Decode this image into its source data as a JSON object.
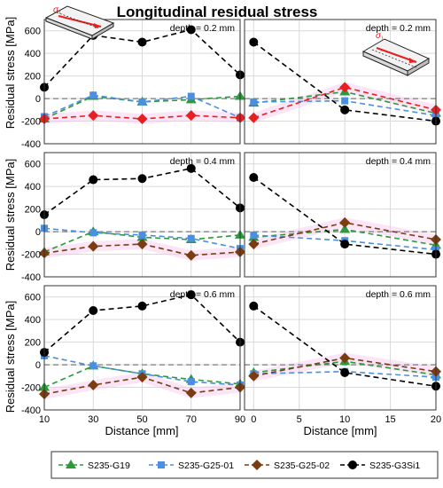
{
  "figure": {
    "title": "Longitudinal residual stress",
    "ylabel": "Residual stress [MPa]",
    "xlabel": "Distance [mm]",
    "sigma_label": "σ",
    "sigma_sub": "L"
  },
  "legend": [
    {
      "name": "S235-G19",
      "color": "#2a9a3a",
      "marker": "triangle"
    },
    {
      "name": "S235-G25-01",
      "color": "#4a8fe0",
      "marker": "square"
    },
    {
      "name": "S235-G25-02",
      "color": "#7a3d12",
      "marker": "diamond"
    },
    {
      "name": "S235-G3Si1",
      "color": "#000000",
      "marker": "circle"
    }
  ],
  "colors": {
    "G19": "#2a9a3a",
    "G25_01": "#4a8fe0",
    "G25_02": "#7a3d12",
    "G25_02_top": "#e62020",
    "G3Si1": "#000000",
    "band": "#f7c6ee"
  },
  "chart_data": [
    {
      "type": "line",
      "panel": "left-top",
      "annotation": "depth = 0.2 mm",
      "x": [
        10,
        30,
        50,
        70,
        90
      ],
      "xlim": [
        10,
        90
      ],
      "xticks": [
        10,
        30,
        50,
        70,
        90
      ],
      "ylim": [
        -400,
        700
      ],
      "yticks": [
        -400,
        -200,
        0,
        200,
        400,
        600
      ],
      "grid": true,
      "series": [
        {
          "name": "S235-G19",
          "values": [
            -180,
            20,
            -30,
            -10,
            20
          ]
        },
        {
          "name": "S235-G25-01",
          "values": [
            -160,
            30,
            -30,
            20,
            -170
          ]
        },
        {
          "name": "S235-G25-02",
          "values": [
            -180,
            -150,
            -180,
            -150,
            -170
          ]
        },
        {
          "name": "S235-G3Si1",
          "values": [
            100,
            560,
            500,
            610,
            210
          ]
        }
      ]
    },
    {
      "type": "line",
      "panel": "right-top",
      "annotation": "depth = 0.2 mm",
      "x": [
        0,
        10,
        20
      ],
      "xlim": [
        -1,
        20
      ],
      "xticks": [
        0,
        5,
        10,
        15,
        20
      ],
      "ylim": [
        -400,
        700
      ],
      "yticks": [
        -400,
        -200,
        0,
        200,
        400,
        600
      ],
      "grid": true,
      "series": [
        {
          "name": "S235-G19",
          "values": [
            -40,
            60,
            -130
          ]
        },
        {
          "name": "S235-G25-01",
          "values": [
            -30,
            -20,
            -150
          ]
        },
        {
          "name": "S235-G25-02",
          "values": [
            -170,
            100,
            -100
          ]
        },
        {
          "name": "S235-G3Si1",
          "values": [
            500,
            -100,
            -200
          ]
        }
      ]
    },
    {
      "type": "line",
      "panel": "left-middle",
      "annotation": "depth = 0.4 mm",
      "x": [
        10,
        30,
        50,
        70,
        90
      ],
      "xlim": [
        10,
        90
      ],
      "xticks": [
        10,
        30,
        50,
        70,
        90
      ],
      "ylim": [
        -400,
        700
      ],
      "yticks": [
        -400,
        -200,
        0,
        200,
        400,
        600
      ],
      "grid": true,
      "series": [
        {
          "name": "S235-G19",
          "values": [
            -180,
            0,
            -50,
            -70,
            -30
          ]
        },
        {
          "name": "S235-G25-01",
          "values": [
            30,
            -10,
            -30,
            -60,
            -150
          ]
        },
        {
          "name": "S235-G25-02",
          "values": [
            -190,
            -130,
            -110,
            -210,
            -180
          ]
        },
        {
          "name": "S235-G3Si1",
          "values": [
            150,
            460,
            470,
            560,
            210
          ]
        }
      ]
    },
    {
      "type": "line",
      "panel": "right-middle",
      "annotation": "depth = 0.4 mm",
      "x": [
        0,
        10,
        20
      ],
      "xlim": [
        -1,
        20
      ],
      "xticks": [
        0,
        5,
        10,
        15,
        20
      ],
      "ylim": [
        -400,
        700
      ],
      "yticks": [
        -400,
        -200,
        0,
        200,
        400,
        600
      ],
      "grid": true,
      "series": [
        {
          "name": "S235-G19",
          "values": [
            -50,
            20,
            -120
          ]
        },
        {
          "name": "S235-G25-01",
          "values": [
            -30,
            -80,
            -160
          ]
        },
        {
          "name": "S235-G25-02",
          "values": [
            -110,
            80,
            -70
          ]
        },
        {
          "name": "S235-G3Si1",
          "values": [
            480,
            -110,
            -200
          ]
        }
      ]
    },
    {
      "type": "line",
      "panel": "left-bottom",
      "annotation": "depth = 0.6 mm",
      "x": [
        10,
        30,
        50,
        70,
        90
      ],
      "xlim": [
        10,
        90
      ],
      "xticks": [
        10,
        30,
        50,
        70,
        90
      ],
      "ylim": [
        -400,
        700
      ],
      "yticks": [
        -400,
        -200,
        0,
        200,
        400,
        600
      ],
      "grid": true,
      "series": [
        {
          "name": "S235-G19",
          "values": [
            -200,
            -10,
            -80,
            -130,
            -170
          ]
        },
        {
          "name": "S235-G25-01",
          "values": [
            80,
            -10,
            -80,
            -150,
            -180
          ]
        },
        {
          "name": "S235-G25-02",
          "values": [
            -260,
            -180,
            -110,
            -250,
            -200
          ]
        },
        {
          "name": "S235-G3Si1",
          "values": [
            110,
            480,
            520,
            620,
            200
          ]
        }
      ]
    },
    {
      "type": "line",
      "panel": "right-bottom",
      "annotation": "depth = 0.6 mm",
      "x": [
        0,
        10,
        20
      ],
      "xlim": [
        -1,
        20
      ],
      "xticks": [
        0,
        5,
        10,
        15,
        20
      ],
      "ylim": [
        -400,
        700
      ],
      "yticks": [
        -400,
        -200,
        0,
        200,
        400,
        600
      ],
      "grid": true,
      "series": [
        {
          "name": "S235-G19",
          "values": [
            -70,
            30,
            -90
          ]
        },
        {
          "name": "S235-G25-01",
          "values": [
            -80,
            -60,
            -110
          ]
        },
        {
          "name": "S235-G25-02",
          "values": [
            -100,
            60,
            -60
          ]
        },
        {
          "name": "S235-G3Si1",
          "values": [
            520,
            -70,
            -190
          ]
        }
      ]
    }
  ]
}
